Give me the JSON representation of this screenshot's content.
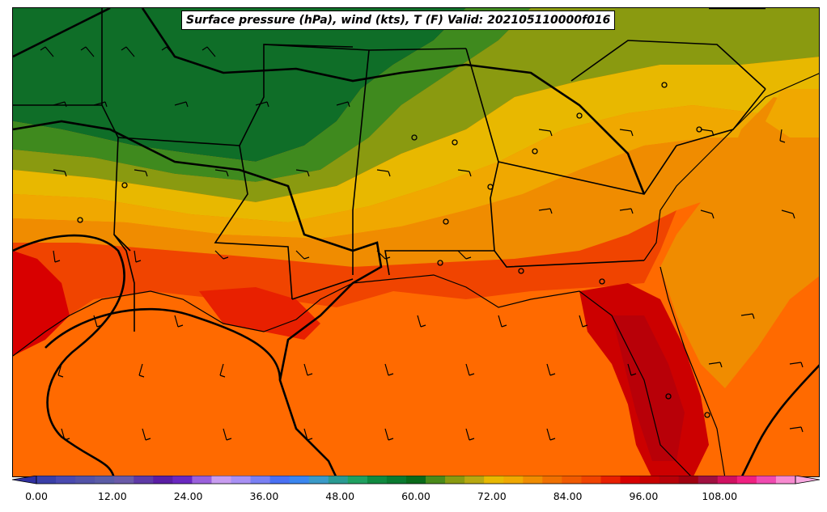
{
  "title": "Surface pressure (hPa), wind (kts), T (F) Valid: 202105110000f016",
  "colorbar": {
    "min": 0,
    "max": 120,
    "step": 3,
    "tick_labels": [
      "0.00",
      "12.00",
      "24.00",
      "36.00",
      "48.00",
      "60.00",
      "72.00",
      "84.00",
      "96.00",
      "108.00"
    ],
    "colors": [
      "#3a3fa8",
      "#4a4ab0",
      "#5353a8",
      "#5b5ca6",
      "#6a5aa8",
      "#5e3aa6",
      "#5a1ea4",
      "#6a28c0",
      "#9a60dc",
      "#c89cf0",
      "#a890f4",
      "#7a80f4",
      "#4a70f4",
      "#3a86f0",
      "#3a9ac8",
      "#2a9a92",
      "#20a060",
      "#108a40",
      "#0a7a30",
      "#0a6a1a",
      "#4a8a1a",
      "#8a9a10",
      "#b8a810",
      "#e8b800",
      "#f0a800",
      "#f08c00",
      "#f07000",
      "#f05a00",
      "#f04400",
      "#e82000",
      "#d80000",
      "#c80000",
      "#b80008",
      "#a00010",
      "#a01040",
      "#d01060",
      "#f02080",
      "#f04ab0",
      "#f88ad0"
    ]
  },
  "map_colors": {
    "ocean": "#ff6a00",
    "cool_north": "#0f6e28",
    "hot_florida": "#cc0000"
  }
}
